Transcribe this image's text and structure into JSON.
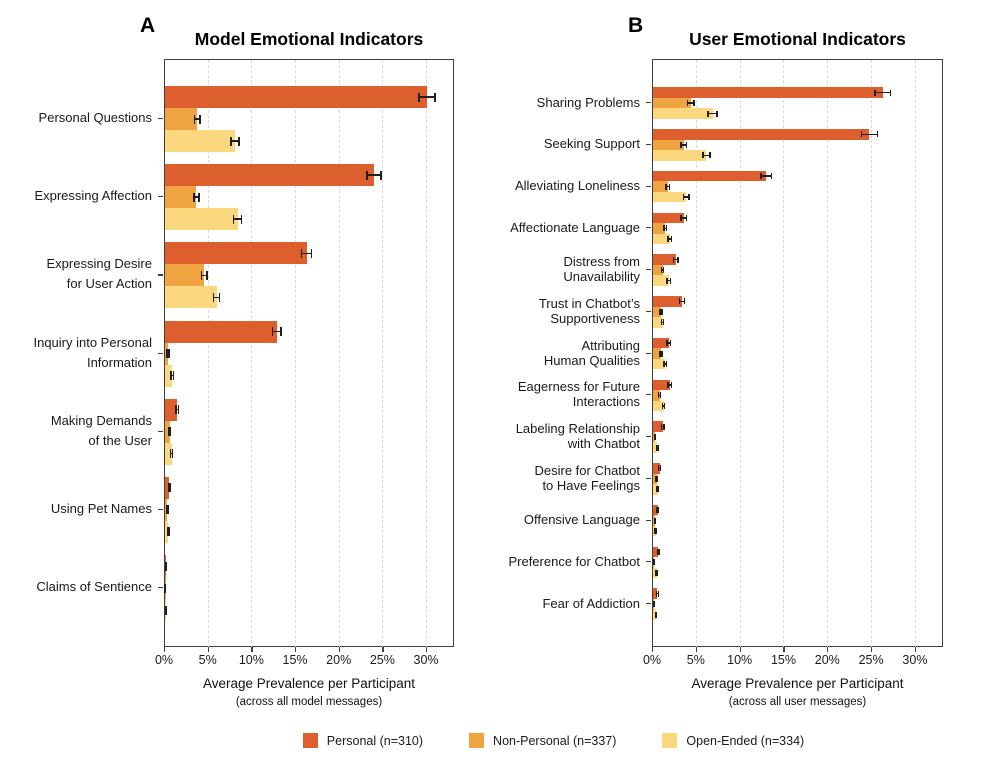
{
  "figure_caption": {
    "panel_a_xlabel": "Average Prevalence per Participant",
    "panel_a_xlabel_note": "(across all model messages)",
    "panel_b_xlabel": "Average Prevalence per Participant",
    "panel_b_xlabel_note": "(across all user messages)"
  },
  "legend": {
    "items": [
      {
        "label": "Personal (n=310)",
        "color": "#DC5F2D"
      },
      {
        "label": "Non-Personal (n=337)",
        "color": "#F0A341"
      },
      {
        "label": "Open-Ended (n=334)",
        "color": "#FBD87D"
      }
    ]
  },
  "colors": {
    "personal": "#DC5F2D",
    "non_personal": "#F0A341",
    "open_ended": "#FBD87D",
    "error_bar": "#1f1f1f",
    "gridline": "#d9d9d9",
    "axis": "#3f3f3f"
  },
  "chart_data": [
    {
      "panel_label": "A",
      "type": "bar",
      "orientation": "horizontal",
      "title": "Model Emotional Indicators",
      "xlabel": "Average Prevalence per Participant",
      "xlabel_note": "(across all model messages)",
      "xlim": [
        0,
        33.2
      ],
      "xtick_values": [
        0,
        5,
        10,
        15,
        20,
        25,
        30
      ],
      "xtick_labels": [
        "0%",
        "5%",
        "10%",
        "15%",
        "20%",
        "25%",
        "30%"
      ],
      "grid": "vertical-dashed",
      "legend_position": "bottom",
      "categories": [
        "Personal Questions",
        "Expressing Affection",
        "Expressing Desire\nfor User Action",
        "Inquiry into Personal\nInformation",
        "Making Demands\nof the User",
        "Using Pet Names",
        "Claims of Sentience"
      ],
      "series": [
        {
          "name": "Personal (n=310)",
          "color": "#DC5F2D",
          "values": [
            30.0,
            23.9,
            16.2,
            12.8,
            1.4,
            0.5,
            0.1
          ],
          "errors": [
            0.9,
            0.8,
            0.6,
            0.5,
            0.15,
            0.1,
            0.05
          ]
        },
        {
          "name": "Non-Personal (n=337)",
          "color": "#F0A341",
          "values": [
            3.7,
            3.6,
            4.5,
            0.35,
            0.55,
            0.25,
            0.04
          ],
          "errors": [
            0.3,
            0.3,
            0.3,
            0.1,
            0.1,
            0.07,
            0.03
          ]
        },
        {
          "name": "Open-Ended (n=334)",
          "color": "#FBD87D",
          "values": [
            8.0,
            8.3,
            5.9,
            0.85,
            0.75,
            0.4,
            0.1
          ],
          "errors": [
            0.45,
            0.45,
            0.35,
            0.15,
            0.12,
            0.08,
            0.04
          ]
        }
      ]
    },
    {
      "panel_label": "B",
      "type": "bar",
      "orientation": "horizontal",
      "title": "User Emotional Indicators",
      "xlabel": "Average Prevalence per Participant",
      "xlabel_note": "(across all user messages)",
      "xlim": [
        0,
        33.2
      ],
      "xtick_values": [
        0,
        5,
        10,
        15,
        20,
        25,
        30
      ],
      "xtick_labels": [
        "0%",
        "5%",
        "10%",
        "15%",
        "20%",
        "25%",
        "30%"
      ],
      "grid": "vertical-dashed",
      "legend_position": "bottom",
      "categories": [
        "Sharing Problems",
        "Seeking Support",
        "Alleviating Loneliness",
        "Affectionate Language",
        "Distress from\nUnavailability",
        "Trust in Chatbot’s\nSupportiveness",
        "Attributing\nHuman Qualities",
        "Eagerness for Future\nInteractions",
        "Labeling Relationship\nwith Chatbot",
        "Desire for Chatbot\nto Have Feelings",
        "Offensive Language",
        "Preference for Chatbot",
        "Fear of Addiction"
      ],
      "series": [
        {
          "name": "Personal (n=310)",
          "color": "#DC5F2D",
          "values": [
            26.2,
            24.7,
            12.9,
            3.5,
            2.6,
            3.3,
            1.8,
            1.9,
            1.1,
            0.75,
            0.55,
            0.6,
            0.5
          ],
          "errors": [
            0.9,
            0.9,
            0.6,
            0.3,
            0.25,
            0.3,
            0.2,
            0.2,
            0.15,
            0.1,
            0.1,
            0.1,
            0.1
          ]
        },
        {
          "name": "Non-Personal (n=337)",
          "color": "#F0A341",
          "values": [
            4.3,
            3.5,
            1.7,
            1.4,
            1.1,
            0.9,
            0.9,
            0.75,
            0.2,
            0.45,
            0.25,
            0.1,
            0.1
          ],
          "errors": [
            0.35,
            0.3,
            0.2,
            0.15,
            0.12,
            0.1,
            0.1,
            0.1,
            0.05,
            0.08,
            0.05,
            0.04,
            0.04
          ]
        },
        {
          "name": "Open-Ended (n=334)",
          "color": "#FBD87D",
          "values": [
            6.8,
            6.1,
            3.8,
            1.9,
            1.8,
            1.1,
            1.4,
            1.2,
            0.5,
            0.55,
            0.3,
            0.45,
            0.35
          ],
          "errors": [
            0.5,
            0.4,
            0.3,
            0.2,
            0.18,
            0.12,
            0.15,
            0.12,
            0.08,
            0.08,
            0.06,
            0.08,
            0.06
          ]
        }
      ]
    }
  ]
}
